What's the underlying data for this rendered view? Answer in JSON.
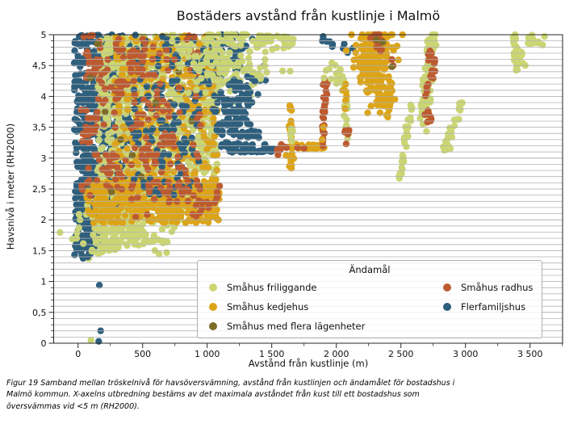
{
  "figure": {
    "title": "Bostäders avstånd från kustlinje i Malmö",
    "caption_lines": [
      "Figur 19 Samband mellan tröskelnivå för havsöversvämning, avstånd från kustlinjen och ändamålet för bostadshus i",
      "Malmö kommun. X-axelns utbredning bestäms av det maximala avståndet från kust till ett bostadshus som",
      "översvämmas vid <5 m (RH2000)."
    ]
  },
  "chart_data": {
    "type": "scatter",
    "title": "Bostäders avstånd från kustlinje i Malmö",
    "xlabel": "Avstånd från kustlinje (m)",
    "ylabel": "Havsnivå i meter (RH2000)",
    "xlim": [
      -190,
      3755
    ],
    "ylim": [
      0,
      5
    ],
    "x_ticks": {
      "values": [
        0,
        500,
        1000,
        1500,
        2000,
        2500,
        3000,
        3500
      ],
      "labels": [
        "0",
        "500",
        "1 000",
        "1 500",
        "2 000",
        "2 500",
        "3 000",
        "3 500"
      ]
    },
    "y_ticks": {
      "values": [
        0,
        0.5,
        1,
        1.5,
        2,
        2.5,
        3,
        3.5,
        4,
        4.5,
        5
      ],
      "labels": [
        "0",
        "0,5",
        "1",
        "1,5",
        "2",
        "2,5",
        "3",
        "3,5",
        "4",
        "4,5",
        "5"
      ]
    },
    "x_minor_step": 250,
    "y_minor_step": 0.1,
    "grid": {
      "horizontal_minor": true,
      "vertical": false,
      "above_points": true,
      "color": "#b3b3b3"
    },
    "marker_radius_px": 4.2,
    "legend": {
      "title": "Ändamål",
      "position": "lower right",
      "items": [
        {
          "key": "FR",
          "label": "Småhus friliggande"
        },
        {
          "key": "RA",
          "label": "Småhus radhus"
        },
        {
          "key": "KE",
          "label": "Småhus kedjehus"
        },
        {
          "key": "FF",
          "label": "Flerfamiljshus"
        },
        {
          "key": "FL",
          "label": "Småhus med flera lägenheter"
        }
      ]
    },
    "series_colors": {
      "FR": "#cbd673",
      "KE": "#dda417",
      "FL": "#7d6c28",
      "RA": "#bd5a30",
      "FF": "#2e5f7d"
    },
    "note": "Dense scatter of thousands of buildings approximated by cluster specs; x in metres from coastline, y in metres RH2000.",
    "clusters": [
      {
        "s": "FF",
        "kind": "box",
        "x0": -30,
        "x1": 430,
        "y0": 2.1,
        "y1": 5.0,
        "n": 650
      },
      {
        "s": "FF",
        "kind": "box",
        "x0": -20,
        "x1": 200,
        "y0": 1.5,
        "y1": 2.2,
        "n": 140
      },
      {
        "s": "FF",
        "kind": "gauss",
        "cx": 40,
        "cy": 1.6,
        "sx": 50,
        "sy": 0.1,
        "n": 30
      },
      {
        "s": "FR",
        "kind": "box",
        "x0": 150,
        "x1": 1080,
        "y0": 2.15,
        "y1": 5.0,
        "n": 900
      },
      {
        "s": "FR",
        "kind": "gauss",
        "cx": 350,
        "cy": 1.85,
        "sx": 170,
        "sy": 0.2,
        "n": 150
      },
      {
        "s": "FR",
        "kind": "gauss",
        "cx": 250,
        "cy": 1.62,
        "sx": 60,
        "sy": 0.08,
        "n": 30
      },
      {
        "s": "FR",
        "kind": "pts",
        "pts": [
          [
            160,
            1.45
          ],
          [
            185,
            1.5
          ],
          [
            100,
            0.05
          ]
        ]
      },
      {
        "s": "KE",
        "kind": "box",
        "x0": 280,
        "x1": 1080,
        "y0": 2.3,
        "y1": 5.0,
        "n": 400
      },
      {
        "s": "KE",
        "kind": "box",
        "x0": 60,
        "x1": 1100,
        "y0": 1.95,
        "y1": 2.62,
        "n": 360
      },
      {
        "s": "FF",
        "kind": "box",
        "x0": 430,
        "x1": 950,
        "y0": 2.4,
        "y1": 5.0,
        "n": 130
      },
      {
        "s": "RA",
        "kind": "box",
        "x0": 10,
        "x1": 950,
        "y0": 2.3,
        "y1": 5.0,
        "n": 160
      },
      {
        "s": "RA",
        "kind": "box",
        "x0": 400,
        "x1": 1100,
        "y0": 2.02,
        "y1": 2.55,
        "n": 28
      },
      {
        "s": "RA",
        "kind": "gauss",
        "cx": 130,
        "cy": 4.55,
        "sx": 45,
        "sy": 0.12,
        "n": 20
      },
      {
        "s": "RA",
        "kind": "gauss",
        "cx": 90,
        "cy": 3.5,
        "sx": 40,
        "sy": 0.1,
        "n": 15
      },
      {
        "s": "RA",
        "kind": "gauss",
        "cx": 300,
        "cy": 4.1,
        "sx": 35,
        "sy": 0.1,
        "n": 13
      },
      {
        "s": "RA",
        "kind": "gauss",
        "cx": 430,
        "cy": 4.62,
        "sx": 30,
        "sy": 0.1,
        "n": 12
      },
      {
        "s": "RA",
        "kind": "gauss",
        "cx": 530,
        "cy": 3.05,
        "sx": 30,
        "sy": 0.1,
        "n": 12
      },
      {
        "s": "RA",
        "kind": "gauss",
        "cx": 270,
        "cy": 2.85,
        "sx": 30,
        "sy": 0.1,
        "n": 11
      },
      {
        "s": "RA",
        "kind": "gauss",
        "cx": 700,
        "cy": 3.3,
        "sx": 35,
        "sy": 0.1,
        "n": 10
      },
      {
        "s": "RA",
        "kind": "gauss",
        "cx": 820,
        "cy": 2.6,
        "sx": 30,
        "sy": 0.08,
        "n": 8
      },
      {
        "s": "FL",
        "kind": "pts",
        "pts": [
          [
            150,
            4.85
          ],
          [
            95,
            4.3
          ],
          [
            210,
            3.75
          ],
          [
            330,
            3.3
          ],
          [
            490,
            2.7
          ],
          [
            600,
            3.9
          ],
          [
            260,
            2.45
          ],
          [
            780,
            4.4
          ],
          [
            420,
            3.05
          ],
          [
            880,
            3.6
          ]
        ]
      },
      {
        "s": "FF",
        "kind": "gauss",
        "cx": 1150,
        "cy": 4.62,
        "sx": 140,
        "sy": 0.26,
        "n": 75
      },
      {
        "s": "FR",
        "kind": "gauss",
        "cx": 1160,
        "cy": 4.55,
        "sx": 170,
        "sy": 0.3,
        "n": 150
      },
      {
        "s": "FR",
        "kind": "box",
        "x0": 1380,
        "x1": 1680,
        "y0": 4.78,
        "y1": 5.0,
        "n": 35
      },
      {
        "s": "FF",
        "kind": "chain",
        "x0": 1080,
        "y0": 3.93,
        "x1": 1350,
        "y1": 3.93,
        "jx": 30,
        "jy": 0.06,
        "n": 25
      },
      {
        "s": "FF",
        "kind": "chain",
        "x0": 1060,
        "y0": 3.75,
        "x1": 1300,
        "y1": 3.75,
        "jx": 30,
        "jy": 0.05,
        "n": 20
      },
      {
        "s": "FF",
        "kind": "gauss",
        "cx": 1180,
        "cy": 3.55,
        "sx": 90,
        "sy": 0.07,
        "n": 30
      },
      {
        "s": "FF",
        "kind": "chain",
        "x0": 1090,
        "y0": 3.38,
        "x1": 1420,
        "y1": 3.38,
        "jx": 30,
        "jy": 0.05,
        "n": 25
      },
      {
        "s": "FF",
        "kind": "chain",
        "x0": 1100,
        "y0": 3.22,
        "x1": 1460,
        "y1": 3.22,
        "jx": 25,
        "jy": 0.04,
        "n": 22
      },
      {
        "s": "FF",
        "kind": "chain",
        "x0": 1150,
        "y0": 3.12,
        "x1": 1545,
        "y1": 3.13,
        "jx": 25,
        "jy": 0.03,
        "n": 30
      },
      {
        "s": "FF",
        "kind": "gauss",
        "cx": 1260,
        "cy": 4.15,
        "sx": 60,
        "sy": 0.1,
        "n": 20
      },
      {
        "s": "RA",
        "kind": "gauss",
        "cx": 1560,
        "cy": 3.15,
        "sx": 18,
        "sy": 0.05,
        "n": 8
      },
      {
        "s": "KE",
        "kind": "chain",
        "x0": 1640,
        "y0": 3.85,
        "x1": 1650,
        "y1": 3.3,
        "jx": 14,
        "jy": 0.05,
        "n": 16
      },
      {
        "s": "KE",
        "kind": "chain",
        "x0": 1635,
        "y0": 3.2,
        "x1": 1900,
        "y1": 3.17,
        "jx": 12,
        "jy": 0.035,
        "n": 48
      },
      {
        "s": "FR",
        "kind": "chain",
        "x0": 1652,
        "y0": 3.5,
        "x1": 1652,
        "y1": 3.3,
        "jx": 12,
        "jy": 0.04,
        "n": 7
      },
      {
        "s": "RA",
        "kind": "pts",
        "pts": [
          [
            1600,
            3.18
          ],
          [
            1615,
            3.17
          ],
          [
            1700,
            3.17
          ],
          [
            1750,
            3.16
          ]
        ]
      },
      {
        "s": "KE",
        "kind": "gauss",
        "cx": 1655,
        "cy": 2.97,
        "sx": 16,
        "sy": 0.07,
        "n": 9
      },
      {
        "s": "RA",
        "kind": "chain",
        "x0": 1895,
        "y0": 3.22,
        "x1": 1908,
        "y1": 3.95,
        "jx": 10,
        "jy": 0.06,
        "n": 20
      },
      {
        "s": "RA",
        "kind": "gauss",
        "cx": 1930,
        "cy": 4.12,
        "sx": 18,
        "sy": 0.09,
        "n": 9
      },
      {
        "s": "KE",
        "kind": "pts",
        "pts": [
          [
            1890,
            3.3
          ],
          [
            1900,
            3.5
          ]
        ]
      },
      {
        "s": "FR",
        "kind": "pts",
        "pts": [
          [
            1905,
            4.3
          ],
          [
            1920,
            4.42
          ]
        ]
      },
      {
        "s": "FR",
        "kind": "chain",
        "x0": 2050,
        "y0": 4.45,
        "x1": 2085,
        "y1": 3.3,
        "jx": 16,
        "jy": 0.06,
        "n": 20
      },
      {
        "s": "KE",
        "kind": "gauss",
        "cx": 2065,
        "cy": 3.95,
        "sx": 12,
        "sy": 0.1,
        "n": 7
      },
      {
        "s": "RA",
        "kind": "gauss",
        "cx": 2085,
        "cy": 3.42,
        "sx": 10,
        "sy": 0.08,
        "n": 7
      },
      {
        "s": "FF",
        "kind": "chain",
        "x0": 1850,
        "y0": 4.97,
        "x1": 2110,
        "y1": 4.72,
        "jx": 50,
        "jy": 0.06,
        "n": 11
      },
      {
        "s": "KE",
        "kind": "gauss",
        "cx": 2300,
        "cy": 4.78,
        "sx": 70,
        "sy": 0.16,
        "n": 120
      },
      {
        "s": "KE",
        "kind": "gauss",
        "cx": 2285,
        "cy": 4.38,
        "sx": 52,
        "sy": 0.18,
        "n": 85
      },
      {
        "s": "KE",
        "kind": "gauss",
        "cx": 2350,
        "cy": 4.02,
        "sx": 45,
        "sy": 0.14,
        "n": 50
      },
      {
        "s": "KE",
        "kind": "chain",
        "x0": 2400,
        "y0": 3.72,
        "x1": 2425,
        "y1": 4.35,
        "jx": 12,
        "jy": 0.08,
        "n": 16
      },
      {
        "s": "RA",
        "kind": "gauss",
        "cx": 2290,
        "cy": 4.95,
        "sx": 38,
        "sy": 0.05,
        "n": 11
      },
      {
        "s": "RA",
        "kind": "gauss",
        "cx": 2345,
        "cy": 4.8,
        "sx": 15,
        "sy": 0.05,
        "n": 5
      },
      {
        "s": "RA",
        "kind": "pts",
        "pts": [
          [
            2430,
            4.6
          ],
          [
            2440,
            4.5
          ]
        ]
      },
      {
        "s": "FL",
        "kind": "pts",
        "pts": [
          [
            2310,
            4.92
          ],
          [
            2430,
            4.48
          ],
          [
            2360,
            4.88
          ]
        ]
      },
      {
        "s": "FR",
        "kind": "chain",
        "x0": 2478,
        "y0": 2.6,
        "x1": 2588,
        "y1": 3.95,
        "jx": 14,
        "jy": 0.07,
        "n": 26
      },
      {
        "s": "FR",
        "kind": "chain",
        "x0": 2672,
        "y0": 3.5,
        "x1": 2745,
        "y1": 5.0,
        "jx": 38,
        "jy": 0.09,
        "n": 85
      },
      {
        "s": "RA",
        "kind": "gauss",
        "cx": 2740,
        "cy": 4.62,
        "sx": 16,
        "sy": 0.06,
        "n": 8
      },
      {
        "s": "RA",
        "kind": "gauss",
        "cx": 2745,
        "cy": 4.33,
        "sx": 14,
        "sy": 0.06,
        "n": 7
      },
      {
        "s": "RA",
        "kind": "gauss",
        "cx": 2705,
        "cy": 4.12,
        "sx": 13,
        "sy": 0.06,
        "n": 6
      },
      {
        "s": "RA",
        "kind": "gauss",
        "cx": 2722,
        "cy": 3.62,
        "sx": 14,
        "sy": 0.06,
        "n": 7
      },
      {
        "s": "FR",
        "kind": "chain",
        "x0": 2835,
        "y0": 3.08,
        "x1": 2985,
        "y1": 3.98,
        "jx": 22,
        "jy": 0.09,
        "n": 26
      },
      {
        "s": "FR",
        "kind": "chain",
        "x0": 3378,
        "y0": 5.0,
        "x1": 3395,
        "y1": 4.38,
        "jx": 14,
        "jy": 0.07,
        "n": 24
      },
      {
        "s": "FR",
        "kind": "chain",
        "x0": 3425,
        "y0": 4.72,
        "x1": 3455,
        "y1": 4.48,
        "jx": 10,
        "jy": 0.06,
        "n": 10
      },
      {
        "s": "FR",
        "kind": "box",
        "x0": 3465,
        "x1": 3620,
        "y0": 4.82,
        "y1": 5.0,
        "n": 12
      },
      {
        "s": "FR",
        "kind": "box",
        "x0": 1900,
        "x1": 2050,
        "y0": 4.2,
        "y1": 4.55,
        "n": 12
      },
      {
        "s": "FF",
        "kind": "pts",
        "pts": [
          [
            165,
            0.94
          ],
          [
            175,
            0.2
          ],
          [
            160,
            0.03
          ],
          [
            30,
            1.42
          ],
          [
            75,
            1.4
          ]
        ]
      }
    ]
  }
}
